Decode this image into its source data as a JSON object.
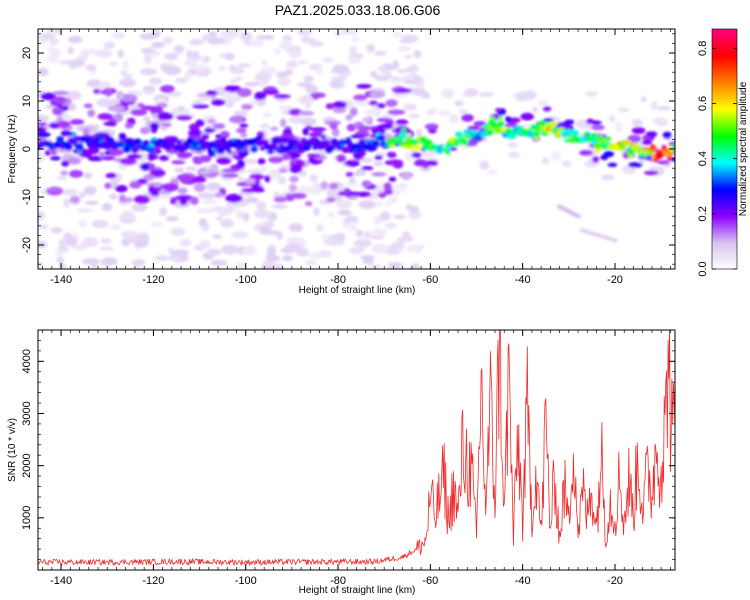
{
  "title": "PAZ1.2025.033.18.06.G06",
  "chart_data": [
    {
      "type": "heatmap",
      "xlabel": "Height of straight line (km)",
      "ylabel": "Frequency (Hz)",
      "xlim": [
        -145,
        -7
      ],
      "ylim": [
        -25,
        25
      ],
      "xticks": [
        -140,
        -120,
        -100,
        -80,
        -60,
        -40,
        -20
      ],
      "yticks": [
        20,
        10,
        0,
        -10,
        -20
      ],
      "colorbar": {
        "label": "Normalized spectral amplitude",
        "range": [
          0,
          0.87
        ],
        "ticks": [
          0.0,
          0.2,
          0.4,
          0.6,
          0.8
        ],
        "colormap": [
          "#ffffff",
          "#d8c4f0",
          "#8a00ff",
          "#0000ff",
          "#00ffff",
          "#00ff00",
          "#ffff00",
          "#ff8000",
          "#ff0000",
          "#ff0080"
        ]
      },
      "ridge": {
        "x": [
          -145,
          -135,
          -125,
          -115,
          -105,
          -95,
          -85,
          -75,
          -66,
          -62,
          -58,
          -54,
          -50,
          -46,
          -42,
          -38,
          -34,
          -30,
          -26,
          -22,
          -18,
          -14,
          -10,
          -7
        ],
        "y": [
          1,
          1.5,
          0.5,
          1,
          0.5,
          1,
          0.5,
          1,
          2,
          1,
          0.5,
          2,
          3,
          5,
          3,
          4,
          4.5,
          3,
          2,
          1,
          0.5,
          -0.5,
          -1,
          0
        ],
        "amplitude": [
          0.3,
          0.32,
          0.33,
          0.32,
          0.3,
          0.3,
          0.28,
          0.3,
          0.55,
          0.7,
          0.5,
          0.6,
          0.45,
          0.6,
          0.45,
          0.5,
          0.6,
          0.55,
          0.5,
          0.55,
          0.65,
          0.6,
          0.87,
          0.55
        ]
      },
      "secondary_features": [
        {
          "x": [
            -32,
            -28
          ],
          "y": [
            -12,
            -14
          ],
          "amplitude": 0.1
        },
        {
          "x": [
            -27,
            -20
          ],
          "y": [
            -17,
            -19
          ],
          "amplitude": 0.08
        }
      ]
    },
    {
      "type": "line",
      "xlabel": "Height of straight line (km)",
      "ylabel": "SNR (10 * v/v)",
      "xlim": [
        -145,
        -7
      ],
      "ylim": [
        0,
        4600
      ],
      "xticks": [
        -140,
        -120,
        -100,
        -80,
        -60,
        -40,
        -20
      ],
      "yticks": [
        1000,
        2000,
        3000,
        4000
      ],
      "color": "#ee2c2c",
      "series": [
        {
          "x": [
            -145,
            -130,
            -115,
            -100,
            -85,
            -72,
            -66,
            -63,
            -61,
            -60,
            -59,
            -57,
            -56,
            -55,
            -54,
            -53,
            -51,
            -50,
            -49,
            -48,
            -47,
            -46,
            -45,
            -44,
            -43,
            -42,
            -41,
            -40,
            -39,
            -38,
            -37,
            -36,
            -35,
            -34,
            -33,
            -32,
            -31,
            -30,
            -29,
            -28,
            -27,
            -26,
            -25,
            -24,
            -23,
            -22,
            -21,
            -20,
            -19,
            -18,
            -17,
            -16,
            -15,
            -14,
            -13,
            -12,
            -11,
            -10,
            -9,
            -8.5,
            -8,
            -7.5,
            -7
          ],
          "y": [
            150,
            150,
            160,
            150,
            155,
            160,
            250,
            400,
            550,
            1400,
            1000,
            1800,
            900,
            1600,
            1000,
            2300,
            1800,
            600,
            3600,
            1200,
            3100,
            1400,
            4600,
            1000,
            3800,
            600,
            2600,
            900,
            3000,
            1100,
            2000,
            700,
            2800,
            800,
            1800,
            600,
            1600,
            900,
            2700,
            700,
            1500,
            1000,
            1600,
            800,
            2300,
            700,
            1300,
            1000,
            1800,
            900,
            1700,
            1100,
            2200,
            1200,
            1800,
            1500,
            2400,
            2000,
            2800,
            4450,
            3200,
            2500,
            2700
          ]
        }
      ]
    }
  ]
}
